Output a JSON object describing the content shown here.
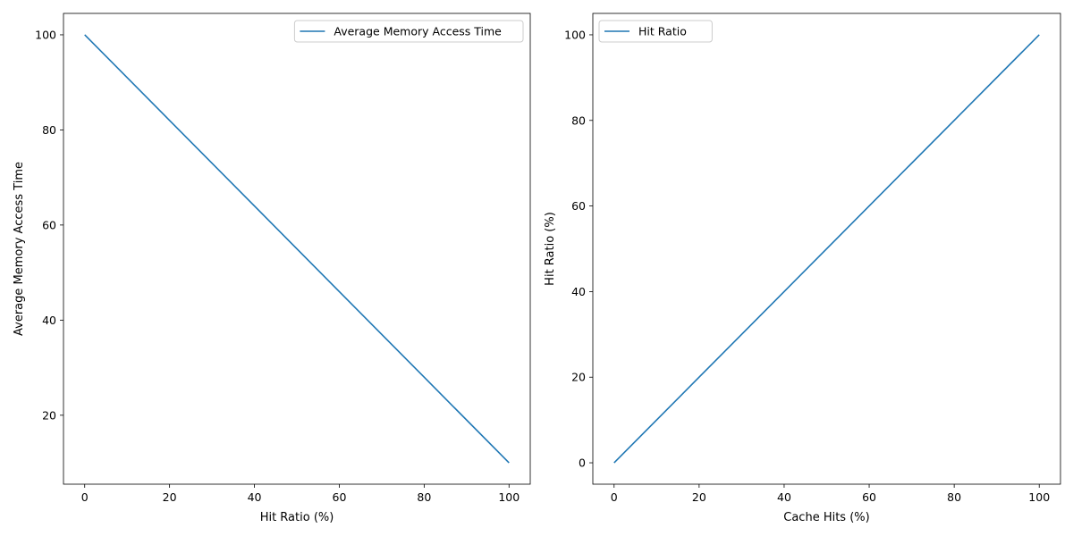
{
  "chart_data": [
    {
      "type": "line",
      "title": "",
      "xlabel": "Hit Ratio (%)",
      "ylabel": "Average Memory Access Time",
      "xlim": [
        -5,
        105
      ],
      "ylim": [
        5.5,
        104.5
      ],
      "xticks": [
        "0",
        "20",
        "40",
        "60",
        "80",
        "100"
      ],
      "yticks": [
        "20",
        "40",
        "60",
        "80",
        "100"
      ],
      "grid": false,
      "legend_position": "upper right",
      "series": [
        {
          "name": "Average Memory Access Time",
          "color": "#1f77b4",
          "x": [
            0,
            20,
            40,
            60,
            80,
            100
          ],
          "y": [
            100,
            82,
            64,
            46,
            28,
            10
          ]
        }
      ]
    },
    {
      "type": "line",
      "title": "",
      "xlabel": "Cache Hits (%)",
      "ylabel": "Hit Ratio (%)",
      "xlim": [
        -5,
        105
      ],
      "ylim": [
        -5,
        105
      ],
      "xticks": [
        "0",
        "20",
        "40",
        "60",
        "80",
        "100"
      ],
      "yticks": [
        "0",
        "20",
        "40",
        "60",
        "80",
        "100"
      ],
      "grid": false,
      "legend_position": "upper left",
      "series": [
        {
          "name": "Hit Ratio",
          "color": "#1f77b4",
          "x": [
            0,
            20,
            40,
            60,
            80,
            100
          ],
          "y": [
            0,
            20,
            40,
            60,
            80,
            100
          ]
        }
      ]
    }
  ]
}
